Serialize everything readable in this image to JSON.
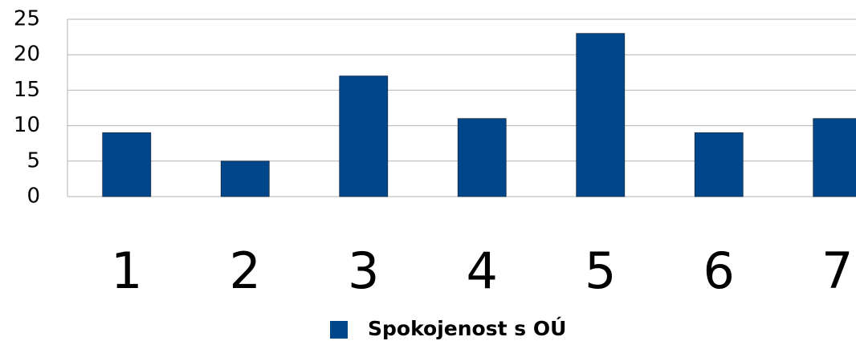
{
  "chart_data": {
    "type": "bar",
    "categories": [
      "1",
      "2",
      "3",
      "4",
      "5",
      "6",
      "7"
    ],
    "series": [
      {
        "name": "Spokojenost s OÚ",
        "color": "#00468b",
        "values": [
          9,
          5,
          17,
          11,
          23,
          9,
          11
        ]
      }
    ],
    "ylim": [
      0,
      25
    ],
    "yticks": [
      0,
      5,
      10,
      15,
      20,
      25
    ],
    "grid": true,
    "legend": "bottom"
  }
}
